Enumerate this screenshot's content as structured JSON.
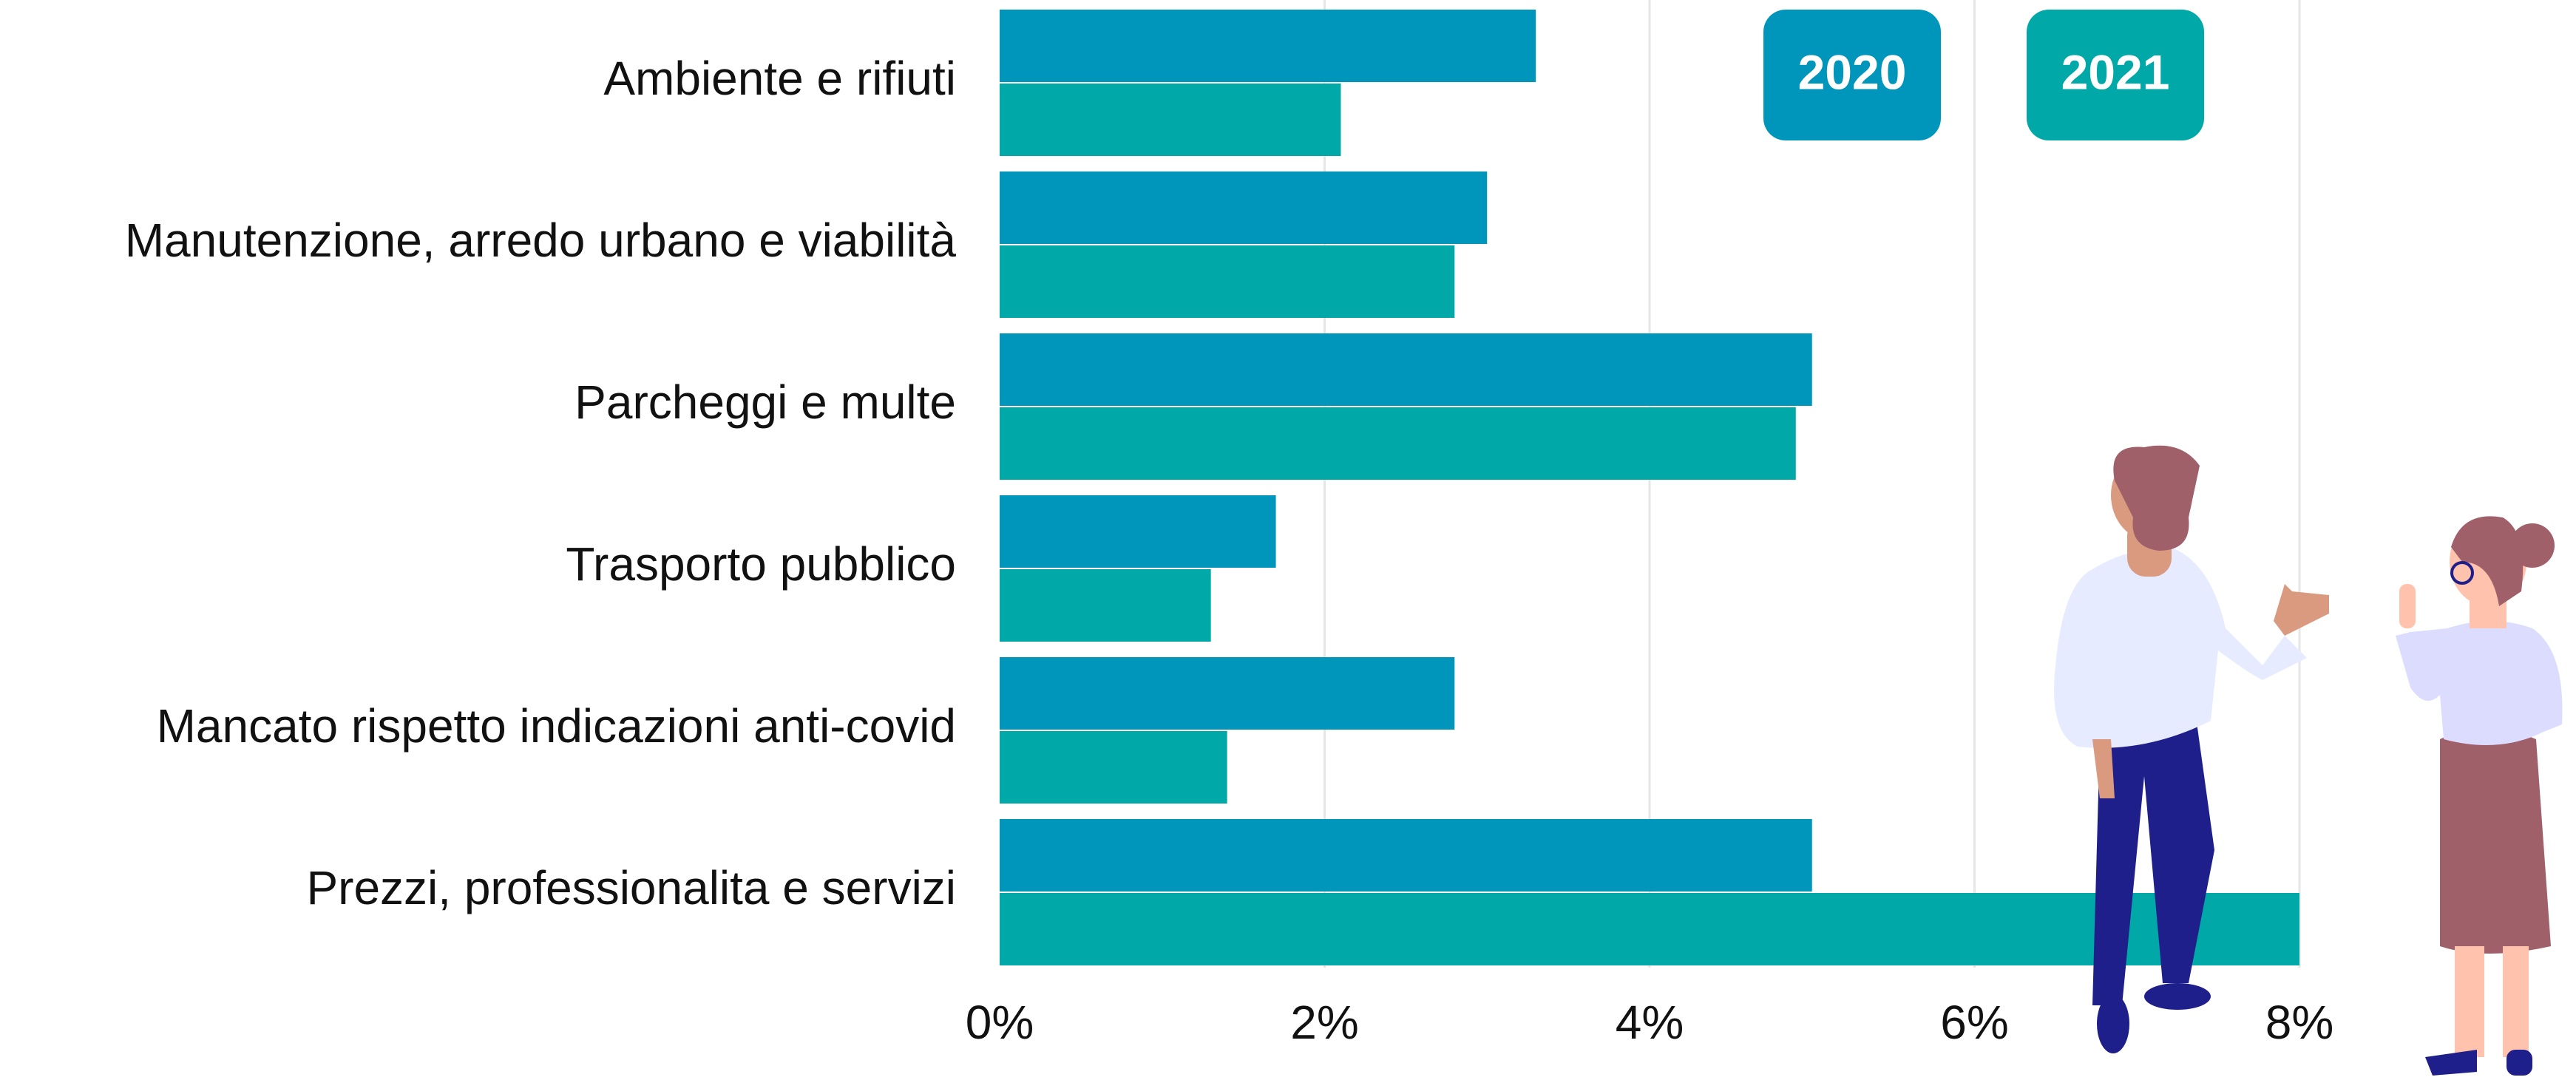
{
  "chart_data": {
    "type": "bar",
    "orientation": "horizontal",
    "categories": [
      "Ambiente e rifiuti",
      "Manutenzione, arredo urbano e viabilità",
      "Parcheggi e multe",
      "Trasporto pubblico",
      "Mancato rispetto indicazioni anti-covid",
      "Prezzi, professionalita e servizi"
    ],
    "series": [
      {
        "name": "2020",
        "color": "#0096bb",
        "values": [
          3.3,
          3.0,
          5.0,
          1.7,
          2.8,
          5.0
        ]
      },
      {
        "name": "2021",
        "color": "#00a8a8",
        "values": [
          2.1,
          2.8,
          4.9,
          1.3,
          1.4,
          8.0
        ]
      }
    ],
    "xlim": [
      0,
      8
    ],
    "xticks": [
      {
        "value": 0,
        "label": "0%"
      },
      {
        "value": 2,
        "label": "2%"
      },
      {
        "value": 4,
        "label": "4%"
      },
      {
        "value": 6,
        "label": "6%"
      },
      {
        "value": 8,
        "label": "8%"
      }
    ],
    "grid": true
  }
}
